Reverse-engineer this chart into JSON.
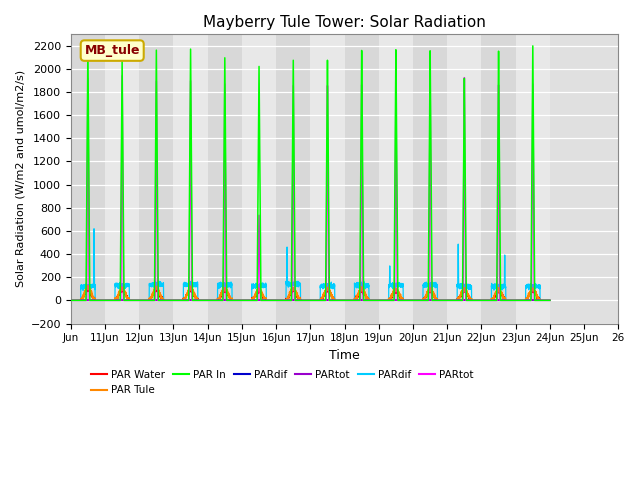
{
  "title": "Mayberry Tule Tower: Solar Radiation",
  "ylabel": "Solar Radiation (W/m2 and umol/m2/s)",
  "xlabel": "Time",
  "xlim_days": [
    10,
    26
  ],
  "ylim": [
    -200,
    2300
  ],
  "yticks": [
    -200,
    0,
    200,
    400,
    600,
    800,
    1000,
    1200,
    1400,
    1600,
    1800,
    2000,
    2200
  ],
  "xtick_days": [
    10,
    11,
    12,
    13,
    14,
    15,
    16,
    17,
    18,
    19,
    20,
    21,
    22,
    23,
    24,
    25,
    26
  ],
  "xtick_labels": [
    "Jun",
    "11Jun",
    "12Jun",
    "13Jun",
    "14Jun",
    "15Jun",
    "16Jun",
    "17Jun",
    "18Jun",
    "19Jun",
    "20Jun",
    "21Jun",
    "22Jun",
    "23Jun",
    "24Jun",
    "25Jun",
    "26"
  ],
  "plot_bg_color": "#e0e0e0",
  "fig_bg_color": "#ffffff",
  "legend_label": "MB_tule",
  "legend_bg": "#ffffcc",
  "legend_border": "#ccaa00",
  "grid_color": "#ffffff",
  "par_water_color": "#ff0000",
  "par_tule_color": "#ff8800",
  "par_in_color": "#00ff00",
  "par_dif_blue_color": "#0000cc",
  "par_tot_purple_color": "#9900cc",
  "par_dif_cyan_color": "#00ccff",
  "par_tot_mag_color": "#ff00ff",
  "par_in_peaks": [
    2200,
    2080,
    2175,
    2190,
    2120,
    2050,
    2110,
    2110,
    2190,
    2190,
    2175,
    1930,
    2160,
    2200
  ],
  "par_tot_mag_peaks": [
    1920,
    1950,
    1910,
    1920,
    1900,
    750,
    1900,
    1900,
    1900,
    1850,
    1860,
    1940,
    1870,
    1870
  ],
  "par_water_peaks": [
    95,
    85,
    90,
    90,
    85,
    80,
    90,
    85,
    85,
    80,
    80,
    80,
    80,
    80
  ],
  "par_tule_peaks": [
    110,
    100,
    105,
    105,
    100,
    95,
    100,
    100,
    100,
    95,
    95,
    95,
    95,
    95
  ],
  "par_dif_cyan_base": [
    120,
    130,
    135,
    135,
    135,
    125,
    140,
    125,
    130,
    130,
    130,
    120,
    120,
    120
  ],
  "par_dif_cyan_spike_days": [
    11,
    17,
    20,
    22,
    23
  ],
  "par_dif_cyan_spike_vals": [
    650,
    470,
    300,
    500,
    420
  ],
  "num_days": 14,
  "day_start": 10
}
